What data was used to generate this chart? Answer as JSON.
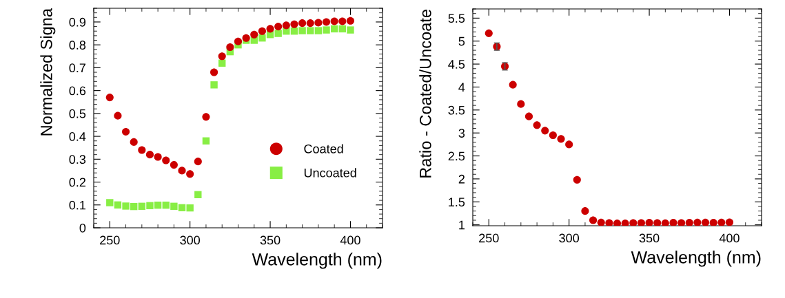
{
  "chart_data": [
    {
      "type": "scatter",
      "xlabel": "Wavelength (nm)",
      "ylabel": "Normalized Signa",
      "x": [
        250,
        255,
        260,
        265,
        270,
        275,
        280,
        285,
        290,
        295,
        300,
        305,
        310,
        315,
        320,
        325,
        330,
        335,
        340,
        345,
        350,
        355,
        360,
        365,
        370,
        375,
        380,
        385,
        390,
        395,
        400
      ],
      "series": [
        {
          "name": "Coated",
          "color": "#cc0000",
          "marker": "circle",
          "values": [
            0.57,
            0.49,
            0.42,
            0.375,
            0.34,
            0.32,
            0.31,
            0.295,
            0.275,
            0.25,
            0.235,
            0.29,
            0.485,
            0.68,
            0.75,
            0.79,
            0.815,
            0.83,
            0.845,
            0.86,
            0.87,
            0.88,
            0.885,
            0.89,
            0.895,
            0.895,
            0.897,
            0.9,
            0.903,
            0.903,
            0.905
          ]
        },
        {
          "name": "Uncoated",
          "color": "#88ee44",
          "marker": "square",
          "values": [
            0.11,
            0.1,
            0.095,
            0.093,
            0.094,
            0.097,
            0.099,
            0.099,
            0.094,
            0.088,
            0.087,
            0.145,
            0.38,
            0.625,
            0.72,
            0.77,
            0.8,
            0.82,
            0.82,
            0.83,
            0.845,
            0.85,
            0.86,
            0.86,
            0.862,
            0.862,
            0.862,
            0.865,
            0.87,
            0.87,
            0.865
          ]
        }
      ],
      "xlim": [
        240,
        420
      ],
      "xticks": [
        250,
        300,
        350,
        400
      ],
      "ylim": [
        0,
        0.96
      ],
      "yticks": [
        0,
        0.1,
        0.2,
        0.3,
        0.4,
        0.5,
        0.6,
        0.7,
        0.8,
        0.9
      ],
      "grid": false,
      "legend": "center right"
    },
    {
      "type": "scatter",
      "xlabel": "Wavelength (nm)",
      "ylabel": "Ratio - Coated/Uncoate",
      "x": [
        250,
        255,
        260,
        265,
        270,
        275,
        280,
        285,
        290,
        295,
        300,
        305,
        310,
        315,
        320,
        325,
        330,
        335,
        340,
        345,
        350,
        355,
        360,
        365,
        370,
        375,
        380,
        385,
        390,
        395,
        400
      ],
      "series": [
        {
          "color": "#cc0000",
          "marker": "circle",
          "values": [
            5.17,
            4.88,
            4.45,
            4.05,
            3.63,
            3.36,
            3.17,
            3.05,
            2.95,
            2.87,
            2.75,
            1.98,
            1.3,
            1.1,
            1.05,
            1.04,
            1.03,
            1.03,
            1.04,
            1.04,
            1.045,
            1.04,
            1.035,
            1.045,
            1.04,
            1.045,
            1.05,
            1.05,
            1.045,
            1.05,
            1.055
          ],
          "errors": [
            null,
            0.08,
            0.08,
            null,
            null,
            null,
            null,
            null,
            null,
            null,
            null,
            null,
            null,
            null,
            null,
            null,
            null,
            null,
            null,
            null,
            null,
            null,
            null,
            null,
            null,
            null,
            null,
            null,
            null,
            null,
            null
          ]
        }
      ],
      "xlim": [
        240,
        420
      ],
      "xticks": [
        250,
        300,
        350,
        400
      ],
      "ylim": [
        0.98,
        5.7
      ],
      "yticks": [
        1,
        1.5,
        2,
        2.5,
        3,
        3.5,
        4,
        4.5,
        5,
        5.5
      ],
      "grid": false,
      "legend": false
    }
  ]
}
